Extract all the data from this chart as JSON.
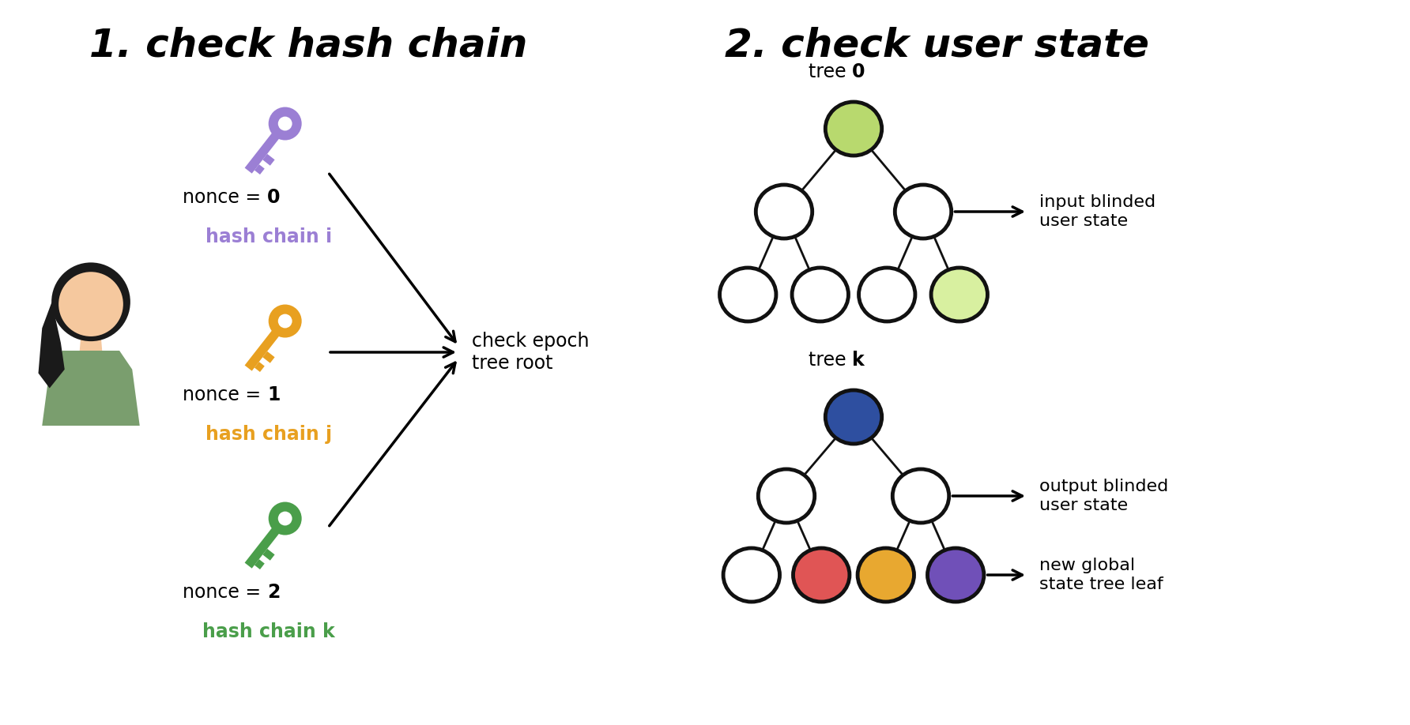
{
  "title1": "1. check hash chain",
  "title2": "2. check user state",
  "key_colors": [
    "#9b7fd4",
    "#e8a020",
    "#4a9e4a"
  ],
  "nonce_labels": [
    "nonce = 0",
    "nonce = 1",
    "nonce = 2"
  ],
  "nonce_bold_parts": [
    "0",
    "1",
    "2"
  ],
  "chain_labels": [
    "hash chain i",
    "hash chain j",
    "hash chain k"
  ],
  "chain_colors": [
    "#9b7fd4",
    "#e8a020",
    "#4a9e4a"
  ],
  "center_label": "check epoch\ntree root",
  "tree0_label": "tree ",
  "tree0_label_bold": "0",
  "treek_label": "tree ",
  "treek_label_bold": "k",
  "input_label": "input blinded\nuser state",
  "output_label": "output blinded\nuser state",
  "newglobal_label": "new global\nstate tree leaf",
  "tree0_root_color": "#b8d96e",
  "treek_root_color": "#2e4fa0",
  "tree0_highlight_color": "#d8f0a0",
  "treek_leaf1_color": "#e05555",
  "treek_leaf2_color": "#e8a830",
  "treek_leaf3_color": "#7050b8",
  "bg_color": "#ffffff",
  "node_edge_color": "#111111",
  "node_edge_width": 3.5,
  "person_skin": "#f5c89e",
  "person_hair": "#1a1a1a",
  "person_shirt": "#7a9e6e"
}
